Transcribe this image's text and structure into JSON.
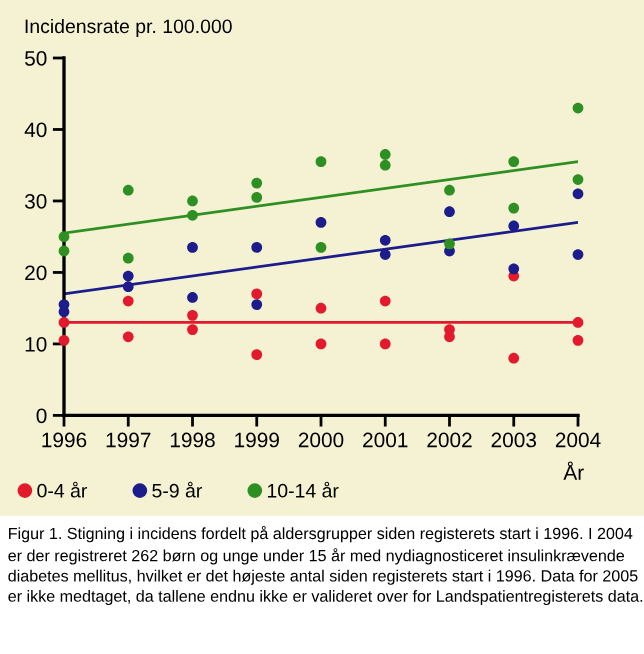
{
  "chart_data": {
    "type": "scatter",
    "ylabel": "Incidensrate pr. 100.000",
    "xlabel": "År",
    "annotations": [
      "Figur 1. Stigning i incidens fordelt på aldersgrupper siden registerets start i 1996. I 2004 er der registreret 262 børn og unge under 15 år med nydiagnosticeret insulinkrævende diabetes mellitus, hvilket er det højeste antal siden registerets start i 1996. Data for 2005 er ikke medtaget, da tallene endnu ikke er valideret over for Landspatientregisterets data."
    ],
    "xlim": [
      1996,
      2004
    ],
    "xticks": [
      1996,
      1997,
      1998,
      1999,
      2000,
      2001,
      2002,
      2003,
      2004
    ],
    "ylim": [
      0,
      50
    ],
    "yticks": [
      0,
      10,
      20,
      30,
      40,
      50
    ],
    "grid": false,
    "legend": "bottom",
    "marker": "circle",
    "series": [
      {
        "name": "0-4 år",
        "color": "#e3192c",
        "x": [
          1996,
          1996,
          1997,
          1997,
          1998,
          1998,
          1999,
          1999,
          2000,
          2000,
          2001,
          2001,
          2002,
          2002,
          2003,
          2003,
          2004,
          2004
        ],
        "values": [
          13,
          10.5,
          16,
          11,
          14,
          12,
          17,
          8.5,
          15,
          10,
          16,
          10,
          12,
          11,
          19.5,
          8,
          13,
          10.5
        ]
      },
      {
        "name": "5-9 år",
        "color": "#1c1c8c",
        "x": [
          1996,
          1996,
          1997,
          1997,
          1998,
          1998,
          1999,
          1999,
          2000,
          2001,
          2001,
          2002,
          2002,
          2003,
          2003,
          2004,
          2004
        ],
        "values": [
          15.5,
          14.5,
          19.5,
          18,
          23.5,
          16.5,
          23.5,
          15.5,
          27,
          24.5,
          22.5,
          28.5,
          23,
          26.5,
          20.5,
          31,
          22.5
        ]
      },
      {
        "name": "10-14 år",
        "color": "#2e8f22",
        "x": [
          1996,
          1996,
          1997,
          1997,
          1998,
          1998,
          1999,
          1999,
          2000,
          2000,
          2001,
          2001,
          2002,
          2002,
          2003,
          2003,
          2004,
          2004
        ],
        "values": [
          25,
          23,
          31.5,
          22,
          30,
          28,
          32.5,
          30.5,
          35.5,
          23.5,
          36.5,
          35,
          31.5,
          24,
          35.5,
          29,
          43,
          33
        ]
      },
      {
        "type": "line",
        "marker": "none",
        "color": "#e3192c",
        "x": [
          1996,
          2004
        ],
        "values": [
          13,
          13
        ]
      },
      {
        "type": "line",
        "marker": "none",
        "color": "#1c1c8c",
        "x": [
          1996,
          2004
        ],
        "values": [
          17,
          27
        ]
      },
      {
        "type": "line",
        "marker": "none",
        "color": "#2e8f22",
        "x": [
          1996,
          2004
        ],
        "values": [
          25.5,
          35.5
        ]
      }
    ]
  }
}
